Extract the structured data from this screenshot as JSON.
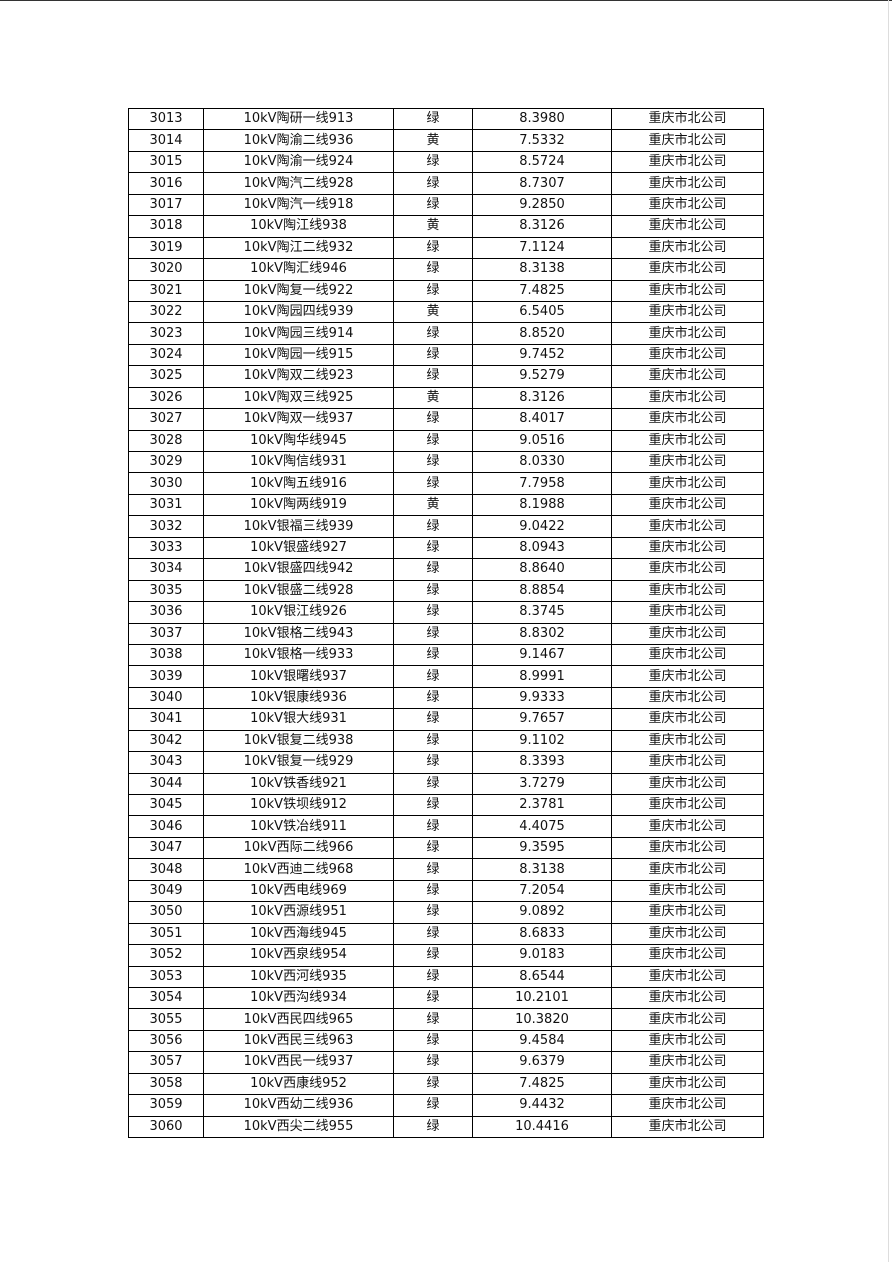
{
  "table": {
    "rows": [
      [
        "3013",
        "10kV陶研一线913",
        "绿",
        "8.3980",
        "重庆市北公司"
      ],
      [
        "3014",
        "10kV陶渝二线936",
        "黄",
        "7.5332",
        "重庆市北公司"
      ],
      [
        "3015",
        "10kV陶渝一线924",
        "绿",
        "8.5724",
        "重庆市北公司"
      ],
      [
        "3016",
        "10kV陶汽二线928",
        "绿",
        "8.7307",
        "重庆市北公司"
      ],
      [
        "3017",
        "10kV陶汽一线918",
        "绿",
        "9.2850",
        "重庆市北公司"
      ],
      [
        "3018",
        "10kV陶江线938",
        "黄",
        "8.3126",
        "重庆市北公司"
      ],
      [
        "3019",
        "10kV陶江二线932",
        "绿",
        "7.1124",
        "重庆市北公司"
      ],
      [
        "3020",
        "10kV陶汇线946",
        "绿",
        "8.3138",
        "重庆市北公司"
      ],
      [
        "3021",
        "10kV陶复一线922",
        "绿",
        "7.4825",
        "重庆市北公司"
      ],
      [
        "3022",
        "10kV陶园四线939",
        "黄",
        "6.5405",
        "重庆市北公司"
      ],
      [
        "3023",
        "10kV陶园三线914",
        "绿",
        "8.8520",
        "重庆市北公司"
      ],
      [
        "3024",
        "10kV陶园一线915",
        "绿",
        "9.7452",
        "重庆市北公司"
      ],
      [
        "3025",
        "10kV陶双二线923",
        "绿",
        "9.5279",
        "重庆市北公司"
      ],
      [
        "3026",
        "10kV陶双三线925",
        "黄",
        "8.3126",
        "重庆市北公司"
      ],
      [
        "3027",
        "10kV陶双一线937",
        "绿",
        "8.4017",
        "重庆市北公司"
      ],
      [
        "3028",
        "10kV陶华线945",
        "绿",
        "9.0516",
        "重庆市北公司"
      ],
      [
        "3029",
        "10kV陶信线931",
        "绿",
        "8.0330",
        "重庆市北公司"
      ],
      [
        "3030",
        "10kV陶五线916",
        "绿",
        "7.7958",
        "重庆市北公司"
      ],
      [
        "3031",
        "10kV陶两线919",
        "黄",
        "8.1988",
        "重庆市北公司"
      ],
      [
        "3032",
        "10kV银福三线939",
        "绿",
        "9.0422",
        "重庆市北公司"
      ],
      [
        "3033",
        "10kV银盛线927",
        "绿",
        "8.0943",
        "重庆市北公司"
      ],
      [
        "3034",
        "10kV银盛四线942",
        "绿",
        "8.8640",
        "重庆市北公司"
      ],
      [
        "3035",
        "10kV银盛二线928",
        "绿",
        "8.8854",
        "重庆市北公司"
      ],
      [
        "3036",
        "10kV银江线926",
        "绿",
        "8.3745",
        "重庆市北公司"
      ],
      [
        "3037",
        "10kV银格二线943",
        "绿",
        "8.8302",
        "重庆市北公司"
      ],
      [
        "3038",
        "10kV银格一线933",
        "绿",
        "9.1467",
        "重庆市北公司"
      ],
      [
        "3039",
        "10kV银曙线937",
        "绿",
        "8.9991",
        "重庆市北公司"
      ],
      [
        "3040",
        "10kV银康线936",
        "绿",
        "9.9333",
        "重庆市北公司"
      ],
      [
        "3041",
        "10kV银大线931",
        "绿",
        "9.7657",
        "重庆市北公司"
      ],
      [
        "3042",
        "10kV银复二线938",
        "绿",
        "9.1102",
        "重庆市北公司"
      ],
      [
        "3043",
        "10kV银复一线929",
        "绿",
        "8.3393",
        "重庆市北公司"
      ],
      [
        "3044",
        "10kV铁香线921",
        "绿",
        "3.7279",
        "重庆市北公司"
      ],
      [
        "3045",
        "10kV铁坝线912",
        "绿",
        "2.3781",
        "重庆市北公司"
      ],
      [
        "3046",
        "10kV铁冶线911",
        "绿",
        "4.4075",
        "重庆市北公司"
      ],
      [
        "3047",
        "10kV西际二线966",
        "绿",
        "9.3595",
        "重庆市北公司"
      ],
      [
        "3048",
        "10kV西迪二线968",
        "绿",
        "8.3138",
        "重庆市北公司"
      ],
      [
        "3049",
        "10kV西电线969",
        "绿",
        "7.2054",
        "重庆市北公司"
      ],
      [
        "3050",
        "10kV西源线951",
        "绿",
        "9.0892",
        "重庆市北公司"
      ],
      [
        "3051",
        "10kV西海线945",
        "绿",
        "8.6833",
        "重庆市北公司"
      ],
      [
        "3052",
        "10kV西泉线954",
        "绿",
        "9.0183",
        "重庆市北公司"
      ],
      [
        "3053",
        "10kV西河线935",
        "绿",
        "8.6544",
        "重庆市北公司"
      ],
      [
        "3054",
        "10kV西沟线934",
        "绿",
        "10.2101",
        "重庆市北公司"
      ],
      [
        "3055",
        "10kV西民四线965",
        "绿",
        "10.3820",
        "重庆市北公司"
      ],
      [
        "3056",
        "10kV西民三线963",
        "绿",
        "9.4584",
        "重庆市北公司"
      ],
      [
        "3057",
        "10kV西民一线937",
        "绿",
        "9.6379",
        "重庆市北公司"
      ],
      [
        "3058",
        "10kV西康线952",
        "绿",
        "7.4825",
        "重庆市北公司"
      ],
      [
        "3059",
        "10kV西幼二线936",
        "绿",
        "9.4432",
        "重庆市北公司"
      ],
      [
        "3060",
        "10kV西尖二线955",
        "绿",
        "10.4416",
        "重庆市北公司"
      ]
    ]
  }
}
